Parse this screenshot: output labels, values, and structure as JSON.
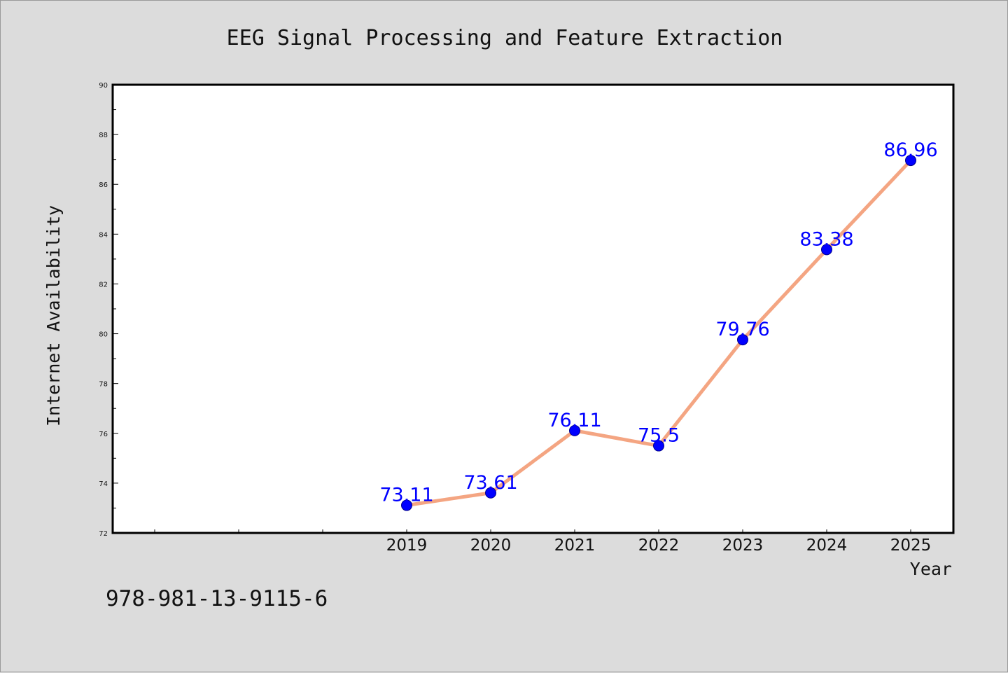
{
  "chart_data": {
    "type": "line",
    "title": "EEG Signal Processing and Feature Extraction",
    "xlabel": "Year",
    "ylabel": "Internet Availability",
    "categories": [
      "2019",
      "2020",
      "2021",
      "2022",
      "2023",
      "2024",
      "2025"
    ],
    "series": [
      {
        "values": [
          73.11,
          73.61,
          76.11,
          75.5,
          79.76,
          83.38,
          86.96
        ],
        "data_labels": [
          "73.11",
          "73.61",
          "76.11",
          "75.5",
          "79.76",
          "83.38",
          "86.96"
        ],
        "line_color": "#f4a582",
        "marker_color": "#0000ff"
      }
    ],
    "ylim": [
      72,
      90
    ],
    "yticks": [
      "72",
      "74",
      "76",
      "78",
      "80",
      "82",
      "84",
      "86",
      "88",
      "90"
    ],
    "grid": false,
    "legend": "none"
  },
  "footnote": "978-981-13-9115-6"
}
